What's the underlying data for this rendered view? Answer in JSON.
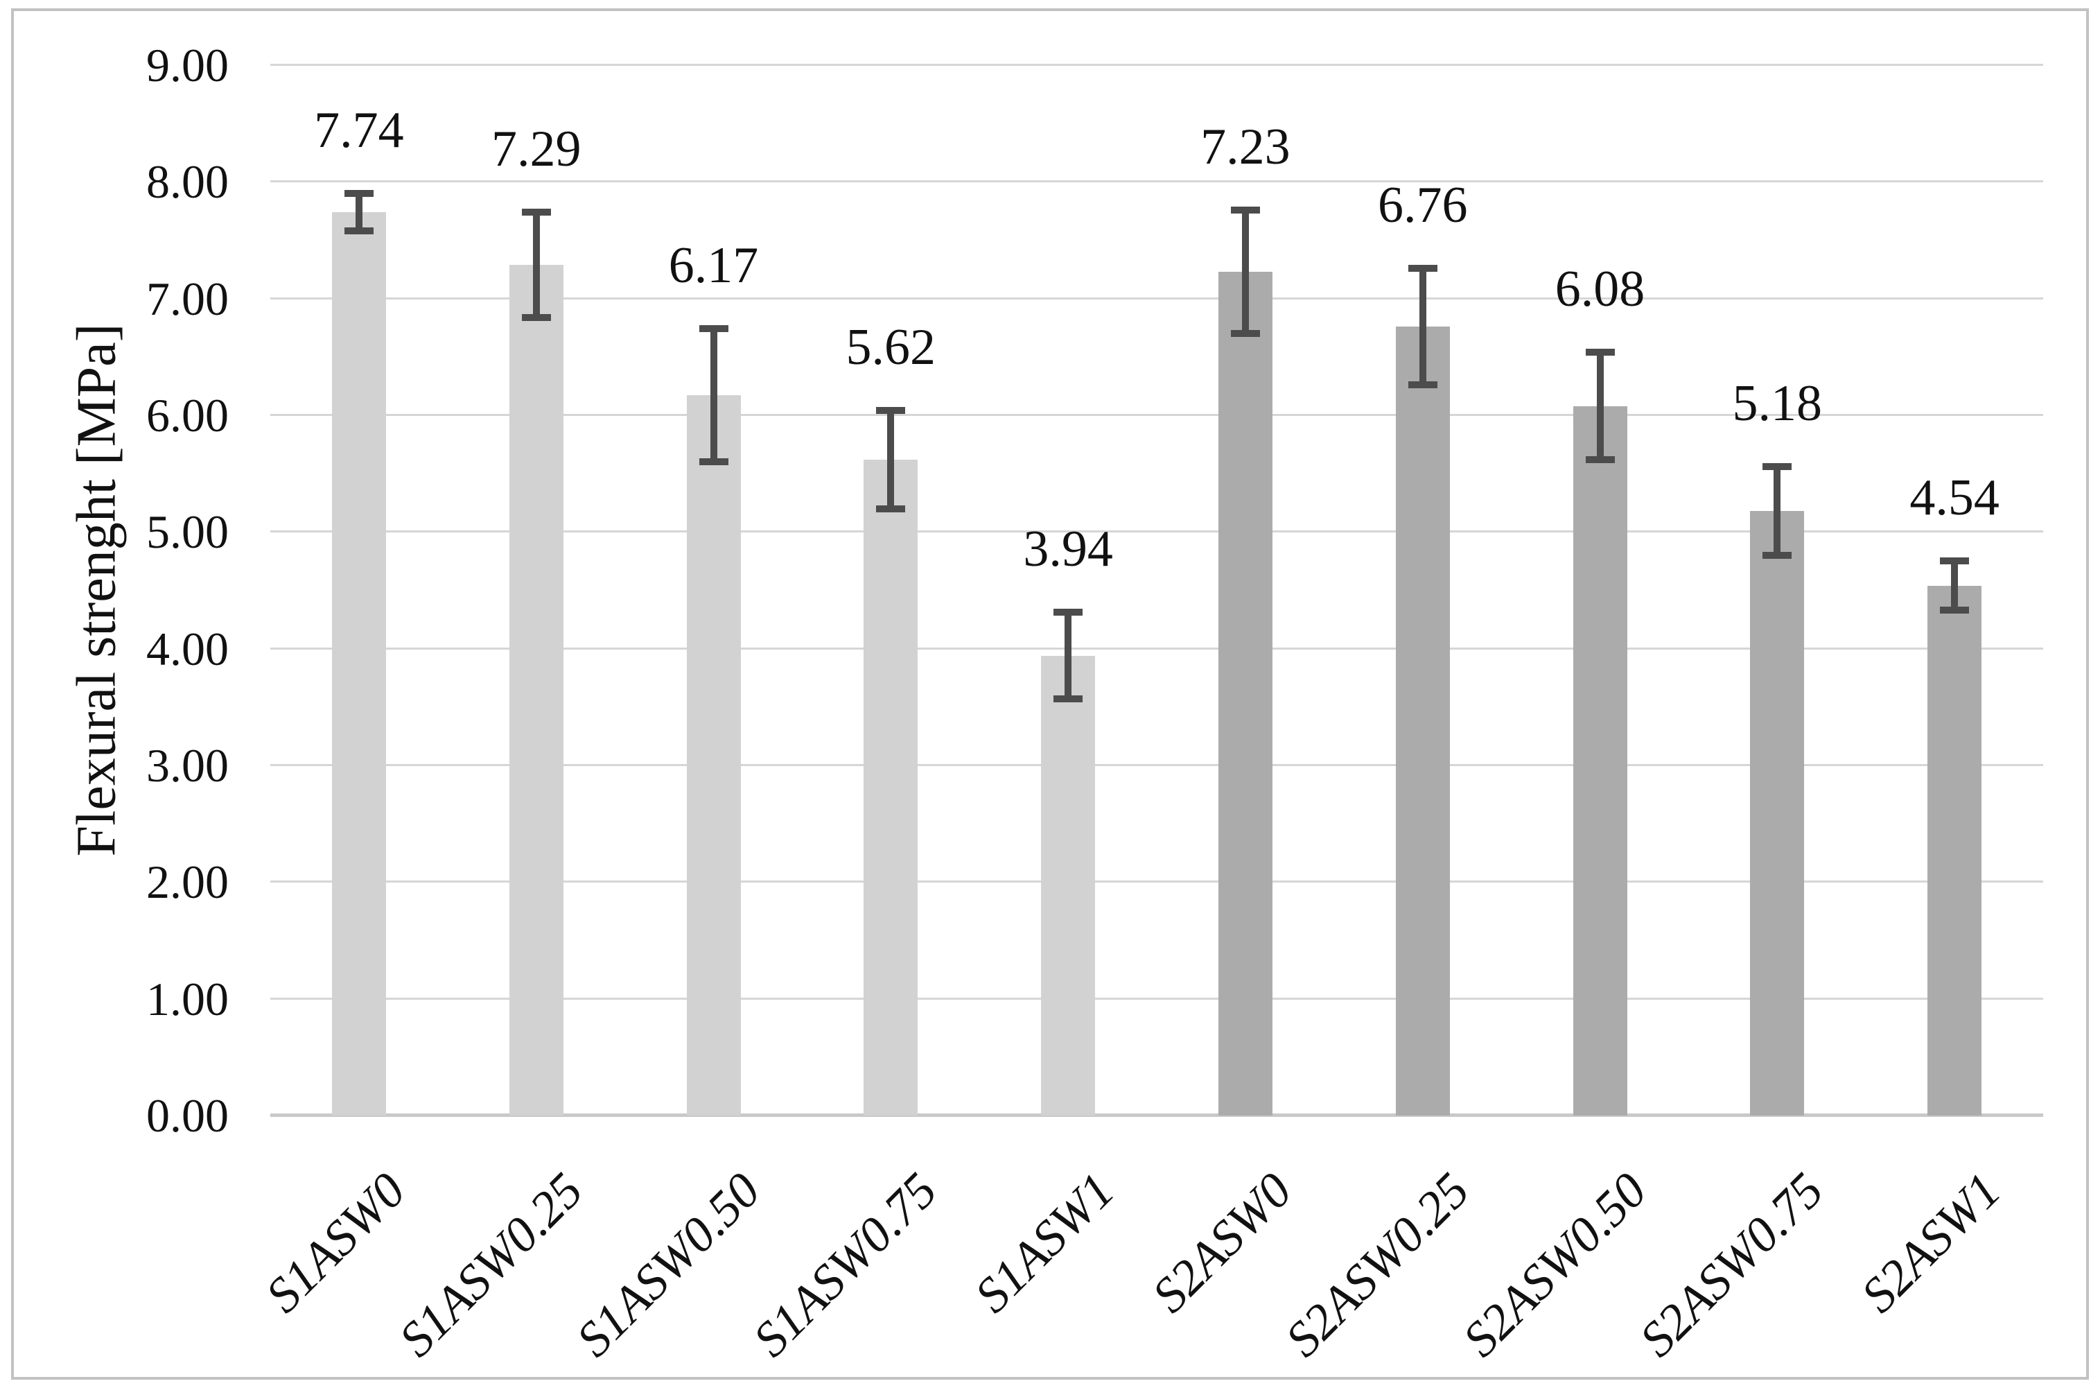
{
  "figure": {
    "background": "#ffffff",
    "border_color": "#c2c2c2",
    "text_color": "#111111"
  },
  "chart_data": {
    "type": "bar",
    "title": "",
    "xlabel": "",
    "ylabel": "Flexural strenght [MPa]",
    "categories": [
      "S1ASW0",
      "S1ASW0.25",
      "S1ASW0.50",
      "S1ASW0.75",
      "S1ASW1",
      "S2ASW0",
      "S2ASW0.25",
      "S2ASW0.50",
      "S2ASW0.75",
      "S2ASW1"
    ],
    "values": [
      7.74,
      7.29,
      6.17,
      5.62,
      3.94,
      7.23,
      6.76,
      6.08,
      5.18,
      4.54
    ],
    "data_labels": [
      "7.74",
      "7.29",
      "6.17",
      "5.62",
      "3.94",
      "7.23",
      "6.76",
      "6.08",
      "5.18",
      "4.54"
    ],
    "errors": [
      0.19,
      0.48,
      0.6,
      0.45,
      0.4,
      0.56,
      0.53,
      0.49,
      0.41,
      0.24
    ],
    "groups": [
      "S1",
      "S1",
      "S1",
      "S1",
      "S1",
      "S2",
      "S2",
      "S2",
      "S2",
      "S2"
    ],
    "group_colors": {
      "S1": "#d2d2d2",
      "S2": "#ababab"
    },
    "error_bar_color": "#4c4c4c",
    "gridline_color": "#d6d6d6",
    "axis_line_color": "#c9c9c9",
    "ylim": [
      0,
      9
    ],
    "ytick_step": 1,
    "ytick_labels": [
      "0.00",
      "1.00",
      "2.00",
      "3.00",
      "4.00",
      "5.00",
      "6.00",
      "7.00",
      "8.00",
      "9.00"
    ],
    "grid": true,
    "legend": "none"
  }
}
